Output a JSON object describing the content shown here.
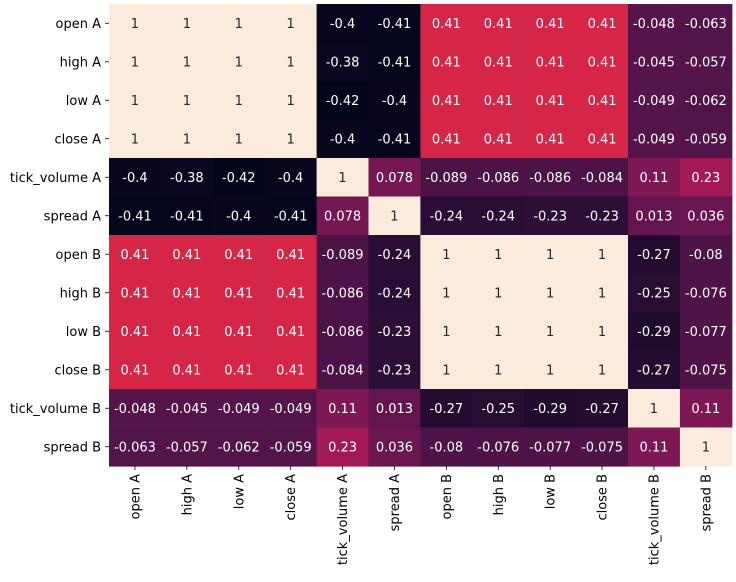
{
  "chart_data": {
    "type": "heatmap",
    "row_labels": [
      "open A",
      "high A",
      "low A",
      "close A",
      "tick_volume A",
      "spread A",
      "open B",
      "high B",
      "low B",
      "close B",
      "tick_volume B",
      "spread B"
    ],
    "col_labels": [
      "open A",
      "high A",
      "low A",
      "close A",
      "tick_volume A",
      "spread A",
      "open B",
      "high B",
      "low B",
      "close B",
      "tick_volume B",
      "spread B"
    ],
    "values": [
      [
        1,
        1,
        1,
        1,
        -0.4,
        -0.41,
        0.41,
        0.41,
        0.41,
        0.41,
        -0.048,
        -0.063
      ],
      [
        1,
        1,
        1,
        1,
        -0.38,
        -0.41,
        0.41,
        0.41,
        0.41,
        0.41,
        -0.045,
        -0.057
      ],
      [
        1,
        1,
        1,
        1,
        -0.42,
        -0.4,
        0.41,
        0.41,
        0.41,
        0.41,
        -0.049,
        -0.062
      ],
      [
        1,
        1,
        1,
        1,
        -0.4,
        -0.41,
        0.41,
        0.41,
        0.41,
        0.41,
        -0.049,
        -0.059
      ],
      [
        -0.4,
        -0.38,
        -0.42,
        -0.4,
        1,
        0.078,
        -0.089,
        -0.086,
        -0.086,
        -0.084,
        0.11,
        0.23
      ],
      [
        -0.41,
        -0.41,
        -0.4,
        -0.41,
        0.078,
        1,
        -0.24,
        -0.24,
        -0.23,
        -0.23,
        0.013,
        0.036
      ],
      [
        0.41,
        0.41,
        0.41,
        0.41,
        -0.089,
        -0.24,
        1,
        1,
        1,
        1,
        -0.27,
        -0.08
      ],
      [
        0.41,
        0.41,
        0.41,
        0.41,
        -0.086,
        -0.24,
        1,
        1,
        1,
        1,
        -0.25,
        -0.076
      ],
      [
        0.41,
        0.41,
        0.41,
        0.41,
        -0.086,
        -0.23,
        1,
        1,
        1,
        1,
        -0.29,
        -0.077
      ],
      [
        0.41,
        0.41,
        0.41,
        0.41,
        -0.084,
        -0.23,
        1,
        1,
        1,
        1,
        -0.27,
        -0.075
      ],
      [
        -0.048,
        -0.045,
        -0.049,
        -0.049,
        0.11,
        0.013,
        -0.27,
        -0.25,
        -0.29,
        -0.27,
        1,
        0.11
      ],
      [
        -0.063,
        -0.057,
        -0.062,
        -0.059,
        0.23,
        0.036,
        -0.08,
        -0.076,
        -0.077,
        -0.075,
        0.11,
        1
      ]
    ],
    "value_labels": [
      [
        "1",
        "1",
        "1",
        "1",
        "-0.4",
        "-0.41",
        "0.41",
        "0.41",
        "0.41",
        "0.41",
        "-0.048",
        "-0.063"
      ],
      [
        "1",
        "1",
        "1",
        "1",
        "-0.38",
        "-0.41",
        "0.41",
        "0.41",
        "0.41",
        "0.41",
        "-0.045",
        "-0.057"
      ],
      [
        "1",
        "1",
        "1",
        "1",
        "-0.42",
        "-0.4",
        "0.41",
        "0.41",
        "0.41",
        "0.41",
        "-0.049",
        "-0.062"
      ],
      [
        "1",
        "1",
        "1",
        "1",
        "-0.4",
        "-0.41",
        "0.41",
        "0.41",
        "0.41",
        "0.41",
        "-0.049",
        "-0.059"
      ],
      [
        "-0.4",
        "-0.38",
        "-0.42",
        "-0.4",
        "1",
        "0.078",
        "-0.089",
        "-0.086",
        "-0.086",
        "-0.084",
        "0.11",
        "0.23"
      ],
      [
        "-0.41",
        "-0.41",
        "-0.4",
        "-0.41",
        "0.078",
        "1",
        "-0.24",
        "-0.24",
        "-0.23",
        "-0.23",
        "0.013",
        "0.036"
      ],
      [
        "0.41",
        "0.41",
        "0.41",
        "0.41",
        "-0.089",
        "-0.24",
        "1",
        "1",
        "1",
        "1",
        "-0.27",
        "-0.08"
      ],
      [
        "0.41",
        "0.41",
        "0.41",
        "0.41",
        "-0.086",
        "-0.24",
        "1",
        "1",
        "1",
        "1",
        "-0.25",
        "-0.076"
      ],
      [
        "0.41",
        "0.41",
        "0.41",
        "0.41",
        "-0.086",
        "-0.23",
        "1",
        "1",
        "1",
        "1",
        "-0.29",
        "-0.077"
      ],
      [
        "0.41",
        "0.41",
        "0.41",
        "0.41",
        "-0.084",
        "-0.23",
        "1",
        "1",
        "1",
        "1",
        "-0.27",
        "-0.075"
      ],
      [
        "-0.048",
        "-0.045",
        "-0.049",
        "-0.049",
        "0.11",
        "0.013",
        "-0.27",
        "-0.25",
        "-0.29",
        "-0.27",
        "1",
        "0.11"
      ],
      [
        "-0.063",
        "-0.057",
        "-0.062",
        "-0.059",
        "0.23",
        "0.036",
        "-0.08",
        "-0.076",
        "-0.077",
        "-0.075",
        "0.11",
        "1"
      ]
    ],
    "vmin": -0.42,
    "vmax": 1,
    "colormap": "rocket",
    "colorbar": false,
    "annotated": true
  }
}
